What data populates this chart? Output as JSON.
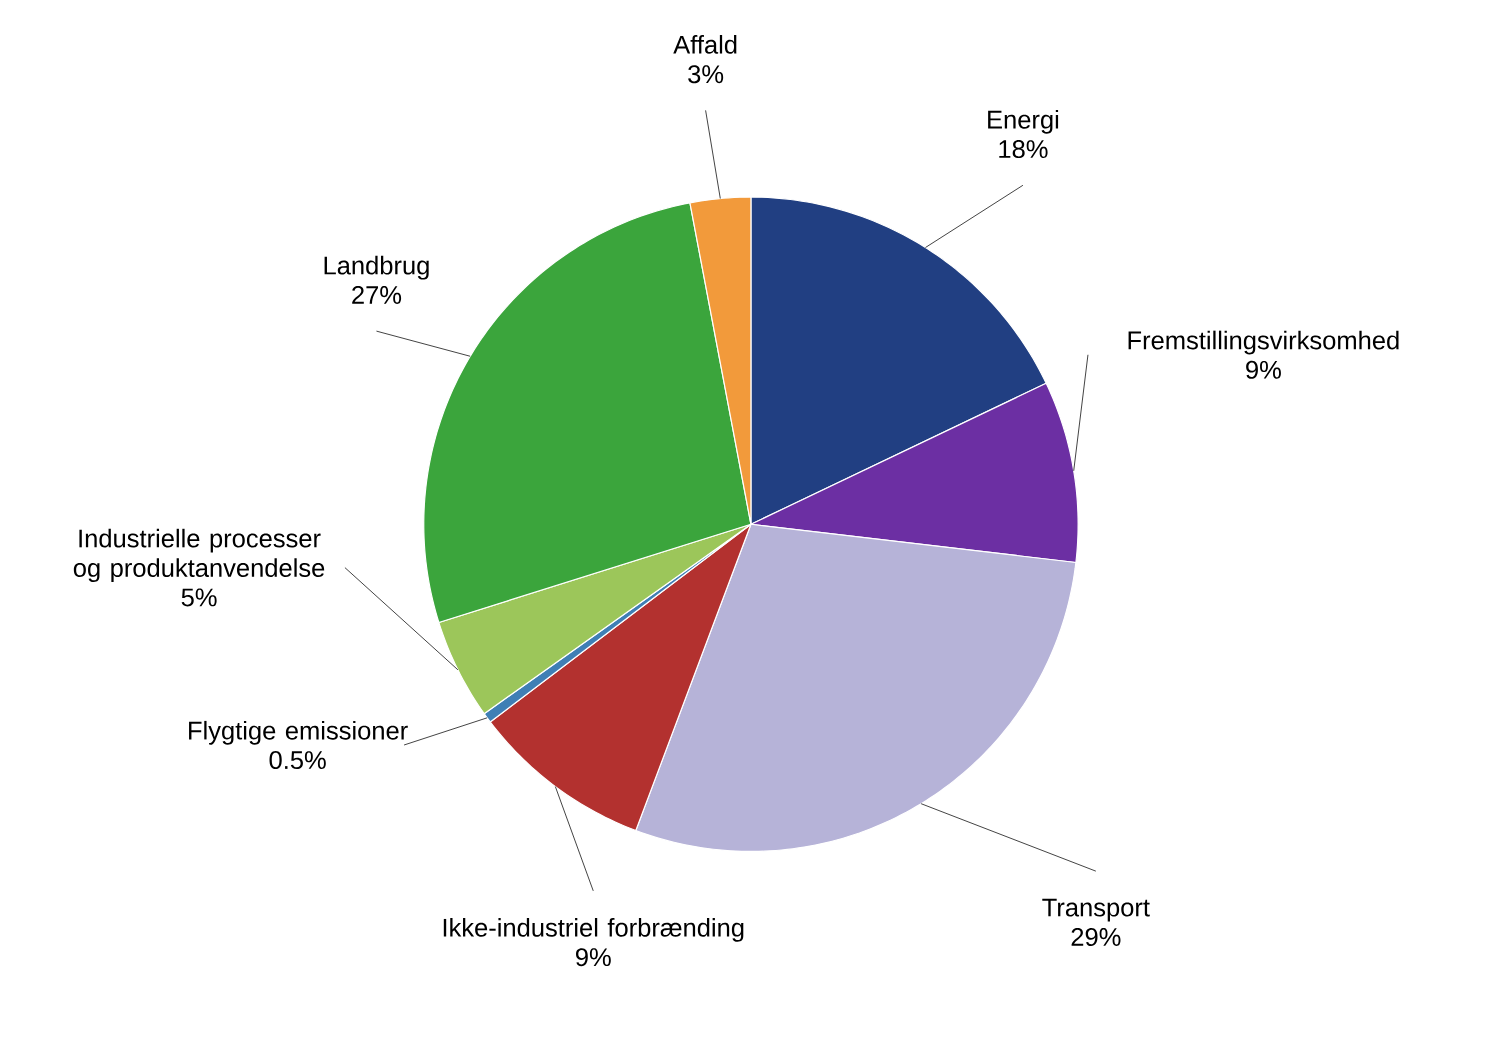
{
  "chart_data": {
    "type": "pie",
    "categories": [
      "Energi",
      "Fremstillingsvirksomhed",
      "Transport",
      "Ikke-industriel forbrænding",
      "Flygtige emissioner",
      "Industrielle processer og produktanvendelse",
      "Landbrug",
      "Affald"
    ],
    "values": [
      18,
      9,
      29,
      9,
      0.5,
      5,
      27,
      3
    ],
    "value_labels": [
      "18%",
      "9%",
      "29%",
      "9%",
      "0.5%",
      "5%",
      "27%",
      "3%"
    ],
    "colors": [
      "#213f82",
      "#6c2fa3",
      "#b6b3d8",
      "#b3312f",
      "#3f7fb5",
      "#9cc65a",
      "#3ba53c",
      "#f29a3b"
    ]
  }
}
